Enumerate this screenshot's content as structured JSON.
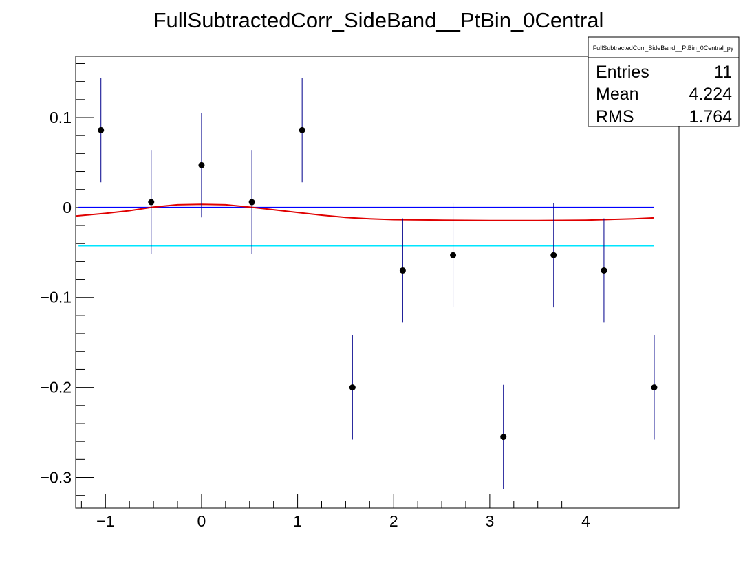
{
  "chart_data": {
    "type": "scatter",
    "title": "FullSubtractedCorr_SideBand__PtBin_0Central",
    "xlabel": "",
    "ylabel": "",
    "xlim": [
      -1.31,
      4.97
    ],
    "ylim": [
      -0.334,
      0.168
    ],
    "x_ticks": [
      -1,
      0,
      1,
      2,
      3,
      4
    ],
    "x_tick_labels": [
      "−1",
      "0",
      "1",
      "2",
      "3",
      "4"
    ],
    "y_ticks": [
      0.1,
      0,
      -0.1,
      -0.2,
      -0.3
    ],
    "y_tick_labels": [
      "0.1",
      "0",
      "−0.1",
      "−0.2",
      "−0.3"
    ],
    "points": {
      "x": [
        -1.047,
        -0.524,
        0.0,
        0.524,
        1.047,
        1.571,
        2.094,
        2.618,
        3.142,
        3.665,
        4.189,
        4.712
      ],
      "y": [
        0.086,
        0.006,
        0.047,
        0.006,
        0.086,
        -0.2,
        -0.07,
        -0.053,
        -0.255,
        -0.053,
        -0.07,
        -0.2
      ],
      "err": [
        0.058,
        0.058,
        0.058,
        0.058,
        0.058,
        0.058,
        0.058,
        0.058,
        0.058,
        0.058,
        0.058,
        0.058
      ],
      "marker_color": "#000000",
      "error_color": "#00008b"
    },
    "lines": [
      {
        "kind": "horizontal",
        "y": 0.0,
        "x_range": [
          -1.28,
          4.71
        ],
        "color": "#0000ff"
      },
      {
        "kind": "horizontal",
        "y": -0.0425,
        "x_range": [
          -1.28,
          4.71
        ],
        "color": "#00e5ff"
      },
      {
        "kind": "curve",
        "color": "#e00000",
        "x": [
          -1.31,
          -1.0,
          -0.75,
          -0.5,
          -0.25,
          0.0,
          0.25,
          0.5,
          0.75,
          1.0,
          1.25,
          1.5,
          1.75,
          2.0,
          2.5,
          3.0,
          3.5,
          4.0,
          4.5,
          4.71
        ],
        "y": [
          -0.0095,
          -0.0065,
          -0.0035,
          0.0005,
          0.003,
          0.0035,
          0.003,
          0.0005,
          -0.0025,
          -0.0055,
          -0.0085,
          -0.011,
          -0.0125,
          -0.0135,
          -0.014,
          -0.0145,
          -0.0145,
          -0.014,
          -0.0125,
          -0.0115
        ]
      }
    ],
    "stats_box": {
      "name": "FullSubtractedCorr_SideBand__PtBin_0Central_py",
      "rows": [
        {
          "label": "Entries",
          "value": "11"
        },
        {
          "label": "Mean",
          "value": "4.224"
        },
        {
          "label": "RMS",
          "value": "1.764"
        }
      ]
    },
    "grid": false,
    "legend": "none"
  }
}
